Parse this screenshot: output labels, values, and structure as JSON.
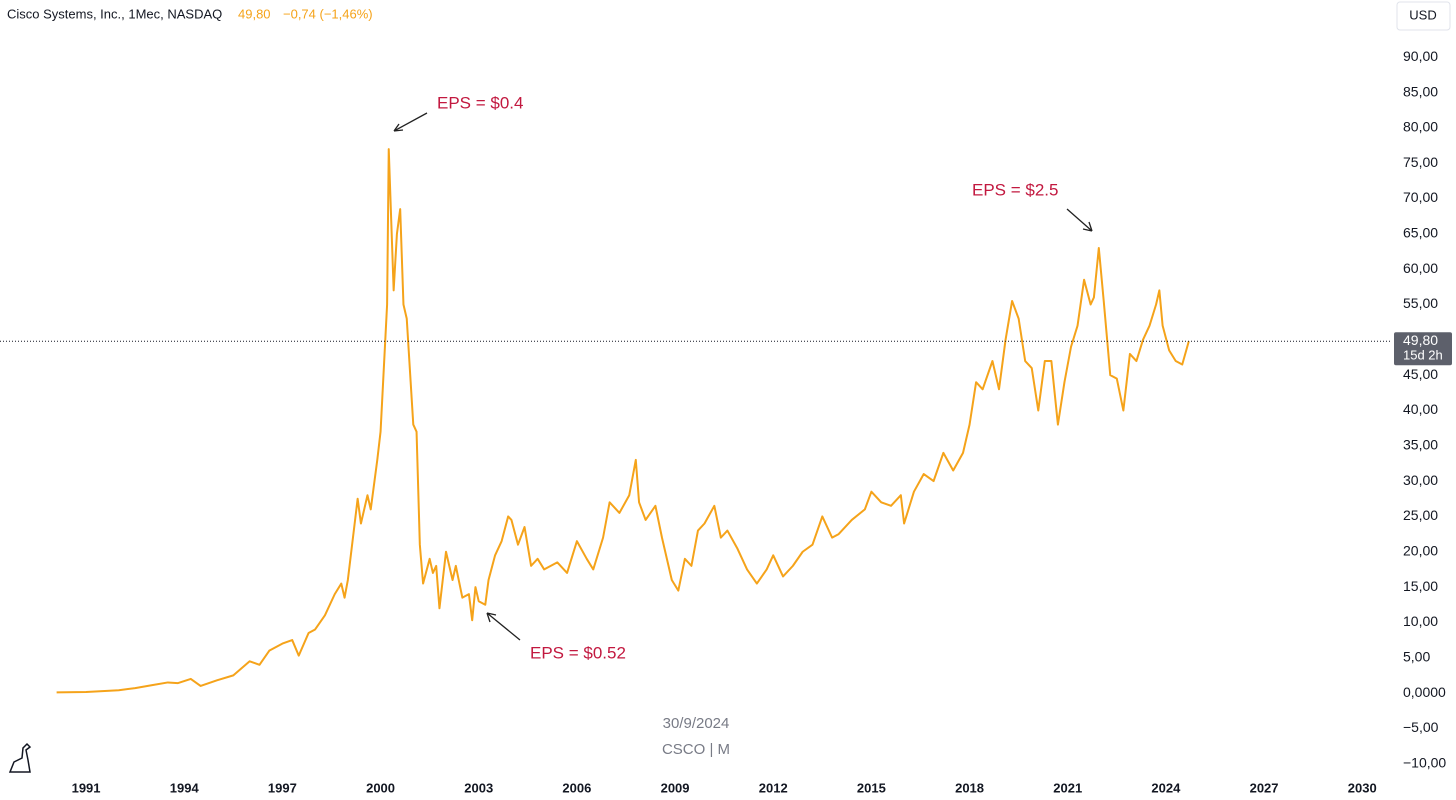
{
  "header": {
    "symbol": "Cisco Systems, Inc., 1Mec, NASDAQ",
    "price": "49,80",
    "change": "−0,74 (−1,46%)",
    "currency": "USD"
  },
  "chart_data": {
    "type": "line",
    "x": [
      1990.1,
      1991,
      1992,
      1992.5,
      1993,
      1993.5,
      1993.8,
      1994.2,
      1994.5,
      1995,
      1995.5,
      1996,
      1996.3,
      1996.6,
      1997,
      1997.3,
      1997.5,
      1997.8,
      1998,
      1998.3,
      1998.6,
      1998.8,
      1998.9,
      1999,
      1999.3,
      1999.4,
      1999.6,
      1999.7,
      1999.9,
      2000,
      2000.2,
      2000.25,
      2000.4,
      2000.5,
      2000.6,
      2000.7,
      2000.8,
      2001,
      2001.1,
      2001.2,
      2001.3,
      2001.5,
      2001.6,
      2001.7,
      2001.8,
      2002,
      2002.2,
      2002.3,
      2002.5,
      2002.7,
      2002.8,
      2002.9,
      2003,
      2003.2,
      2003.3,
      2003.5,
      2003.7,
      2003.9,
      2004,
      2004.2,
      2004.4,
      2004.6,
      2004.8,
      2005,
      2005.4,
      2005.7,
      2006,
      2006.3,
      2006.5,
      2006.8,
      2007,
      2007.3,
      2007.6,
      2007.8,
      2007.9,
      2008.1,
      2008.4,
      2008.6,
      2008.9,
      2009.1,
      2009.3,
      2009.5,
      2009.7,
      2009.9,
      2010.2,
      2010.4,
      2010.6,
      2010.9,
      2011.2,
      2011.5,
      2011.8,
      2012,
      2012.3,
      2012.6,
      2012.9,
      2013.2,
      2013.5,
      2013.8,
      2014,
      2014.4,
      2014.8,
      2015,
      2015.3,
      2015.6,
      2015.9,
      2016,
      2016.3,
      2016.6,
      2016.9,
      2017.2,
      2017.5,
      2017.8,
      2018,
      2018.2,
      2018.4,
      2018.7,
      2018.9,
      2019.1,
      2019.3,
      2019.5,
      2019.7,
      2019.9,
      2020.1,
      2020.3,
      2020.5,
      2020.7,
      2020.9,
      2021.1,
      2021.3,
      2021.5,
      2021.7,
      2021.8,
      2021.95,
      2022.1,
      2022.3,
      2022.5,
      2022.7,
      2022.9,
      2023.1,
      2023.3,
      2023.5,
      2023.7,
      2023.8,
      2023.9,
      2024.1,
      2024.3,
      2024.5,
      2024.7
    ],
    "series": [
      {
        "name": "CSCO",
        "color": "#f5a31a",
        "values": [
          0.1,
          0.15,
          0.4,
          0.7,
          1.1,
          1.5,
          1.4,
          2.0,
          1.0,
          1.8,
          2.5,
          4.5,
          4.0,
          6.0,
          7.0,
          7.5,
          5.3,
          8.5,
          9.0,
          11,
          14,
          15.5,
          13.5,
          16,
          27.5,
          24,
          28,
          26,
          33,
          37,
          55,
          77,
          57,
          65,
          68.5,
          55,
          53,
          38,
          37,
          21,
          15.5,
          19,
          17,
          18,
          12,
          20,
          16,
          18,
          13.5,
          14,
          10.3,
          15,
          13,
          12.5,
          16,
          19.5,
          21.5,
          25,
          24.5,
          21,
          23.5,
          18,
          19,
          17.5,
          18.5,
          17,
          21.5,
          19,
          17.5,
          22,
          27,
          25.5,
          28,
          33,
          27,
          24.5,
          26.5,
          22,
          16,
          14.5,
          19,
          18,
          23,
          24,
          26.5,
          22,
          23,
          20.5,
          17.5,
          15.5,
          17.5,
          19.5,
          16.5,
          18,
          20,
          21,
          25,
          22,
          22.5,
          24.5,
          26,
          28.5,
          27,
          26.5,
          28,
          24,
          28.5,
          31,
          30,
          34,
          31.5,
          34,
          38,
          44,
          43,
          47,
          43,
          50,
          55.5,
          53,
          47,
          46,
          40,
          47,
          47,
          38,
          44,
          49,
          52,
          58.5,
          55,
          56,
          63,
          55.5,
          45,
          44.5,
          40,
          48,
          47,
          50,
          52,
          55,
          57,
          52,
          48.5,
          47,
          46.5,
          49.8
        ]
      }
    ],
    "xlim": [
      1988.37,
      2030.91
    ],
    "ylim": [
      -11.6,
      98.1
    ],
    "xticks": [
      1991,
      1994,
      1997,
      2000,
      2003,
      2006,
      2009,
      2012,
      2015,
      2018,
      2021,
      2024,
      2027,
      2030
    ],
    "yticks": [
      {
        "value": 90,
        "label": "90,00"
      },
      {
        "value": 85,
        "label": "85,00"
      },
      {
        "value": 80,
        "label": "80,00"
      },
      {
        "value": 75,
        "label": "75,00"
      },
      {
        "value": 70,
        "label": "70,00"
      },
      {
        "value": 65,
        "label": "65,00"
      },
      {
        "value": 60,
        "label": "60,00"
      },
      {
        "value": 55,
        "label": "55,00"
      },
      {
        "value": 50,
        "label": "50,00"
      },
      {
        "value": 45,
        "label": "45,00"
      },
      {
        "value": 40,
        "label": "40,00"
      },
      {
        "value": 35,
        "label": "35,00"
      },
      {
        "value": 30,
        "label": "30,00"
      },
      {
        "value": 25,
        "label": "25,00"
      },
      {
        "value": 20,
        "label": "20,00"
      },
      {
        "value": 15,
        "label": "15,00"
      },
      {
        "value": 10,
        "label": "10,00"
      },
      {
        "value": 5,
        "label": "5,00"
      },
      {
        "value": 0,
        "label": "0,0000"
      },
      {
        "value": -5,
        "label": "−5,00"
      },
      {
        "value": -10,
        "label": "−10,00"
      }
    ],
    "last_label": "49,80",
    "countdown": "15d 2h",
    "watermark": [
      "30/9/2024",
      "CSCO | M"
    ],
    "annotations": [
      "EPS = $0.4",
      "EPS = $2.5",
      "EPS = $0.52"
    ]
  }
}
